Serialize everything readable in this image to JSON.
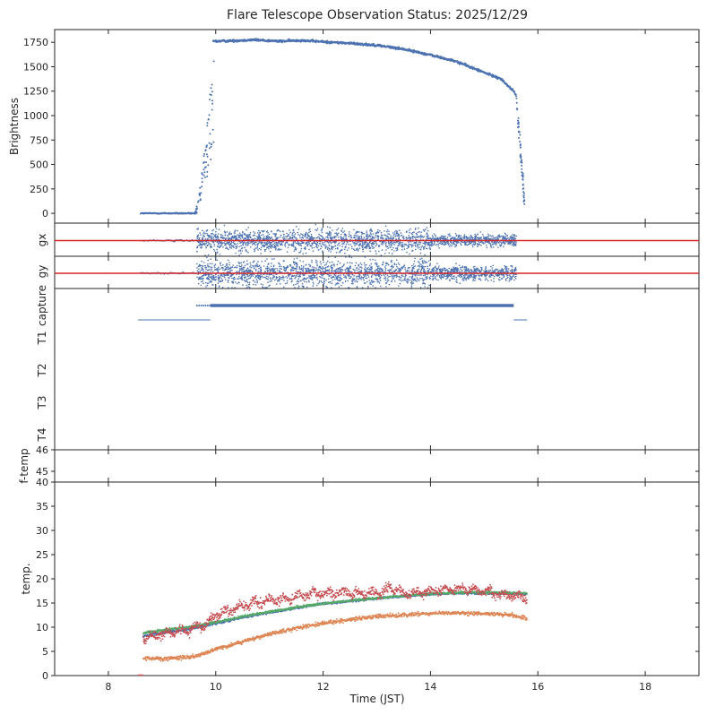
{
  "chart_data": {
    "type": "scatter",
    "title": "Flare Telescope Observation Status: 2025/12/29",
    "xlabel": "Time (JST)",
    "x_range": [
      7,
      19
    ],
    "x_ticks": [
      8,
      10,
      12,
      14,
      16,
      18
    ],
    "panels": {
      "brightness": {
        "ylabel": "Brightness",
        "y_range": [
          -100,
          1880
        ],
        "y_ticks": [
          0,
          250,
          500,
          750,
          1000,
          1250,
          1500,
          1750
        ],
        "color": "#4c72b0",
        "baseline": {
          "x_range": [
            8.6,
            9.65
          ],
          "value": 0
        },
        "rise": {
          "x_range": [
            9.6,
            9.97
          ],
          "value_range": [
            0,
            1760
          ]
        },
        "plateau_points": [
          [
            9.95,
            1760
          ],
          [
            10.3,
            1765
          ],
          [
            10.7,
            1775
          ],
          [
            11.2,
            1760
          ],
          [
            11.6,
            1770
          ],
          [
            12.0,
            1755
          ],
          [
            12.5,
            1740
          ],
          [
            13.0,
            1720
          ],
          [
            13.5,
            1680
          ],
          [
            14.0,
            1620
          ],
          [
            14.5,
            1550
          ],
          [
            15.0,
            1440
          ],
          [
            15.3,
            1380
          ],
          [
            15.55,
            1250
          ],
          [
            15.6,
            1200
          ]
        ],
        "fall": {
          "x_range": [
            15.6,
            15.75
          ],
          "value_range": [
            1200,
            100
          ]
        }
      },
      "gx": {
        "ylabel": "gx",
        "reference_color": "#d62728",
        "point_color": "#4c72b0",
        "x_range": [
          8.6,
          15.8
        ]
      },
      "gy": {
        "ylabel": "gy",
        "reference_color": "#d62728",
        "point_color": "#4c72b0",
        "x_range": [
          8.6,
          15.8
        ]
      },
      "status": {
        "rows": [
          "capture",
          "T1",
          "T2",
          "T3",
          "T4"
        ],
        "color": "#4c72b0",
        "capture_segments": [
          [
            9.65,
            9.9
          ],
          [
            9.9,
            15.55
          ]
        ],
        "t1_segments": [
          [
            8.55,
            9.9
          ],
          [
            15.55,
            15.8
          ]
        ]
      },
      "ftemp": {
        "ylabel": "f-temp",
        "y_range": [
          44.5,
          46
        ],
        "y_ticks": [
          45,
          46
        ]
      },
      "temp": {
        "ylabel": "temp.",
        "y_range": [
          0,
          40
        ],
        "y_ticks": [
          0,
          5,
          10,
          15,
          20,
          25,
          30,
          35,
          40
        ],
        "series": [
          {
            "name": "blue",
            "color": "#4c72b0",
            "x": [
              8.65,
              9.0,
              9.5,
              10.0,
              10.5,
              11.0,
              11.5,
              12.0,
              12.5,
              13.0,
              13.5,
              14.0,
              14.5,
              15.0,
              15.5,
              15.8
            ],
            "values": [
              8.2,
              8.8,
              9.6,
              10.8,
              12.0,
              13.0,
              14.0,
              14.8,
              15.4,
              15.9,
              16.4,
              16.8,
              17.0,
              17.0,
              17.0,
              16.9
            ]
          },
          {
            "name": "green",
            "color": "#55a868",
            "x": [
              8.65,
              9.0,
              9.5,
              10.0,
              10.5,
              11.0,
              11.5,
              12.0,
              12.5,
              13.0,
              13.5,
              14.0,
              14.5,
              15.0,
              15.5,
              15.8
            ],
            "values": [
              8.8,
              9.4,
              10.0,
              11.0,
              12.2,
              13.2,
              14.1,
              14.9,
              15.5,
              16.0,
              16.5,
              16.9,
              17.1,
              17.2,
              17.1,
              17.0
            ]
          },
          {
            "name": "red",
            "color": "#c44e52",
            "x": [
              8.65,
              9.0,
              9.5,
              9.8,
              10.0,
              10.5,
              11.0,
              11.5,
              12.0,
              12.5,
              13.0,
              13.3,
              13.5,
              14.0,
              14.5,
              15.0,
              15.5,
              15.8
            ],
            "values": [
              7.8,
              8.5,
              9.5,
              10.5,
              12.5,
              14.5,
              15.5,
              16.3,
              17.0,
              17.2,
              17.0,
              18.2,
              16.8,
              17.5,
              18.0,
              17.5,
              16.5,
              16.0
            ]
          },
          {
            "name": "orange",
            "color": "#dd8452",
            "x": [
              8.65,
              9.0,
              9.5,
              9.8,
              10.0,
              10.5,
              11.0,
              11.5,
              12.0,
              12.5,
              13.0,
              13.5,
              14.0,
              14.5,
              15.0,
              15.5,
              15.8
            ],
            "values": [
              3.6,
              3.5,
              3.8,
              4.5,
              5.5,
              7.0,
              8.5,
              9.8,
              10.8,
              11.6,
              12.2,
              12.5,
              12.8,
              13.0,
              12.8,
              12.5,
              11.8
            ]
          }
        ],
        "marker_near_zero": {
          "x": 8.6,
          "value": 0.1,
          "color": "#c44e52"
        }
      }
    }
  }
}
